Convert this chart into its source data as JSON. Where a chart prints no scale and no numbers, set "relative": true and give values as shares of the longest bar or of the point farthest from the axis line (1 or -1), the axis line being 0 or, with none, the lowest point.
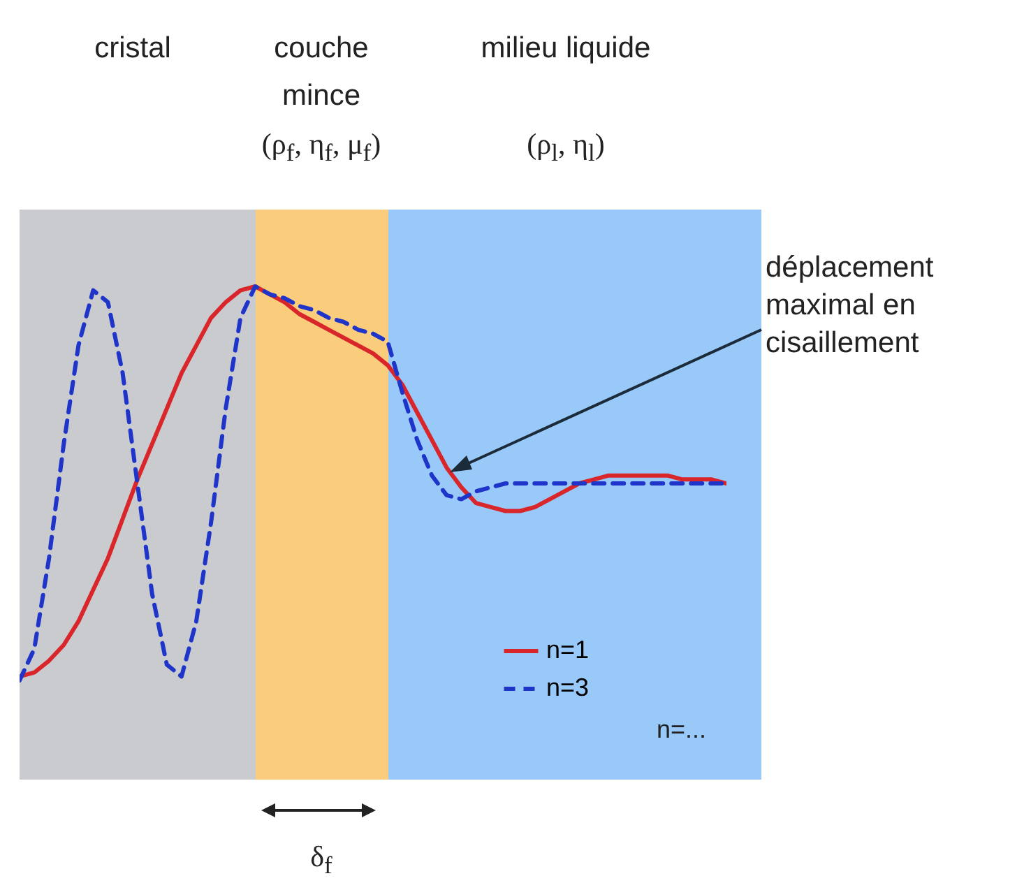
{
  "chart_data": {
    "type": "line",
    "relative": true,
    "legend": "bottom right",
    "categories": [
      null,
      null,
      null,
      null,
      null,
      null,
      null,
      null,
      null,
      null,
      null,
      null,
      null,
      null,
      null,
      null,
      null,
      null,
      null,
      null,
      null,
      null,
      null,
      null,
      null,
      null,
      null,
      null,
      null,
      null,
      null,
      null,
      null,
      null,
      null,
      null,
      null,
      null,
      null,
      null,
      null,
      null,
      null,
      null,
      null,
      null,
      null,
      null,
      null
    ],
    "series": [
      {
        "name": "n=1",
        "color": "#d9262b",
        "line_style": "solid",
        "values": [
          0.01,
          0.02,
          0.05,
          0.09,
          0.15,
          0.23,
          0.31,
          0.41,
          0.51,
          0.6,
          0.69,
          0.78,
          0.85,
          0.92,
          0.96,
          0.99,
          1.0,
          0.98,
          0.96,
          0.93,
          0.91,
          0.89,
          0.87,
          0.85,
          0.83,
          0.8,
          0.75,
          0.68,
          0.61,
          0.54,
          0.49,
          0.45,
          0.44,
          0.43,
          0.43,
          0.44,
          0.46,
          0.48,
          0.5,
          0.51,
          0.52,
          0.52,
          0.52,
          0.52,
          0.52,
          0.51,
          0.51,
          0.51,
          0.5
        ]
      },
      {
        "name": "n=3",
        "color": "#1f35c9",
        "line_style": "dashed",
        "values": [
          0,
          0.08,
          0.31,
          0.6,
          0.85,
          0.99,
          0.96,
          0.78,
          0.5,
          0.22,
          0.04,
          0.01,
          0.15,
          0.4,
          0.69,
          0.92,
          1.0,
          0.98,
          0.97,
          0.95,
          0.94,
          0.92,
          0.91,
          0.89,
          0.88,
          0.86,
          0.73,
          0.61,
          0.52,
          0.47,
          0.46,
          0.48,
          0.49,
          0.5,
          0.5,
          0.5,
          0.5,
          0.5,
          0.5,
          0.5,
          0.5,
          0.5,
          0.5,
          0.5,
          0.5,
          0.5,
          0.5,
          0.5,
          0.5
        ]
      }
    ],
    "annotations": [
      "cristal",
      "couche mince",
      "(ρ$_{f}$, η$_{f}$, μ$_{f}$)",
      "milieu liquide",
      "(ρ$_{l}$, η$_{l}$)",
      "déplacement maximal en cisaillement",
      "δ$_{f}$",
      "n=..."
    ]
  }
}
